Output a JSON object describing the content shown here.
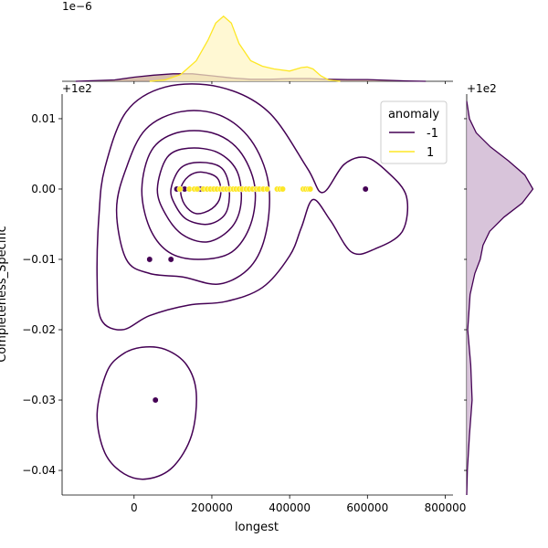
{
  "chart_data": {
    "type": "scatter",
    "title": "",
    "xlabel": "longest",
    "ylabel": "Completeness_Specific",
    "xlim": [
      -185000,
      820000
    ],
    "ylim": [
      -0.0435,
      0.0135
    ],
    "x_ticks": [
      0,
      200000,
      400000,
      600000,
      800000
    ],
    "x_tick_labels": [
      "0",
      "200000",
      "400000",
      "600000",
      "800000"
    ],
    "y_ticks": [
      0.01,
      0.0,
      -0.01,
      -0.02,
      -0.03,
      -0.04
    ],
    "y_tick_labels": [
      "0.01",
      "0.00",
      "−0.01",
      "−0.02",
      "−0.03",
      "−0.04"
    ],
    "y_offset_label": "+1e2",
    "top_marginal_offset_label": "1e−6",
    "right_marginal_offset_label": "+1e2",
    "legend": {
      "title": "anomaly",
      "position": "top-right",
      "entries": [
        {
          "label": "-1",
          "color": "#440154"
        },
        {
          "label": "1",
          "color": "#fde725"
        }
      ]
    },
    "grid": false,
    "series": [
      {
        "name": "-1",
        "color": "#440154",
        "points": [
          [
            40000,
            -0.01
          ],
          [
            55000,
            -0.03
          ],
          [
            95000,
            -0.01
          ],
          [
            110000,
            0.0
          ],
          [
            130000,
            0.0
          ],
          [
            165000,
            0.0
          ],
          [
            172000,
            0.0
          ],
          [
            595000,
            0.0
          ]
        ]
      },
      {
        "name": "1",
        "color": "#fde725",
        "points": [
          [
            118000,
            0.0
          ],
          [
            142000,
            0.0
          ],
          [
            155000,
            0.0
          ],
          [
            162000,
            0.0
          ],
          [
            178000,
            0.0
          ],
          [
            188000,
            0.0
          ],
          [
            196000,
            0.0
          ],
          [
            205000,
            0.0
          ],
          [
            213000,
            0.0
          ],
          [
            222000,
            0.0
          ],
          [
            230000,
            0.0
          ],
          [
            238000,
            0.0
          ],
          [
            246000,
            0.0
          ],
          [
            255000,
            0.0
          ],
          [
            262000,
            0.0
          ],
          [
            270000,
            0.0
          ],
          [
            278000,
            0.0
          ],
          [
            288000,
            0.0
          ],
          [
            296000,
            0.0
          ],
          [
            305000,
            0.0
          ],
          [
            315000,
            0.0
          ],
          [
            322000,
            0.0
          ],
          [
            332000,
            0.0
          ],
          [
            342000,
            0.0
          ],
          [
            368000,
            0.0
          ],
          [
            375000,
            0.0
          ],
          [
            382000,
            0.0
          ],
          [
            435000,
            0.0
          ],
          [
            441000,
            0.0
          ],
          [
            448000,
            0.0
          ],
          [
            453000,
            0.0
          ]
        ]
      }
    ],
    "kde_contours": {
      "series": "-1",
      "color": "#440154",
      "levels": [
        [
          [
            -95000,
            -0.032
          ],
          [
            -70000,
            -0.026
          ],
          [
            -30000,
            -0.0235
          ],
          [
            20000,
            -0.0225
          ],
          [
            80000,
            -0.0228
          ],
          [
            135000,
            -0.025
          ],
          [
            160000,
            -0.029
          ],
          [
            148000,
            -0.035
          ],
          [
            100000,
            -0.0395
          ],
          [
            35000,
            -0.0412
          ],
          [
            -25000,
            -0.0405
          ],
          [
            -75000,
            -0.0375
          ],
          [
            -95000,
            -0.032
          ]
        ],
        [
          [
            -95000,
            -0.0125
          ],
          [
            -90000,
            -0.0035
          ],
          [
            -75000,
            0.003
          ],
          [
            -20000,
            0.011
          ],
          [
            80000,
            0.0145
          ],
          [
            220000,
            0.0145
          ],
          [
            345000,
            0.011
          ],
          [
            445000,
            0.003
          ],
          [
            485000,
            -0.0005
          ],
          [
            540000,
            0.0035
          ],
          [
            595000,
            0.0045
          ],
          [
            650000,
            0.0025
          ],
          [
            700000,
            -0.001
          ],
          [
            690000,
            -0.006
          ],
          [
            620000,
            -0.0085
          ],
          [
            560000,
            -0.009
          ],
          [
            505000,
            -0.0045
          ],
          [
            460000,
            -0.0015
          ],
          [
            430000,
            -0.0055
          ],
          [
            400000,
            -0.0095
          ],
          [
            330000,
            -0.014
          ],
          [
            235000,
            -0.016
          ],
          [
            140000,
            -0.0165
          ],
          [
            40000,
            -0.018
          ],
          [
            -30000,
            -0.02
          ],
          [
            -85000,
            -0.0185
          ],
          [
            -95000,
            -0.0125
          ]
        ],
        [
          [
            -45000,
            -0.003
          ],
          [
            -20000,
            0.003
          ],
          [
            30000,
            0.0085
          ],
          [
            120000,
            0.011
          ],
          [
            220000,
            0.0105
          ],
          [
            300000,
            0.007
          ],
          [
            345000,
            0.001
          ],
          [
            340000,
            -0.006
          ],
          [
            300000,
            -0.011
          ],
          [
            220000,
            -0.0135
          ],
          [
            125000,
            -0.0125
          ],
          [
            40000,
            -0.012
          ],
          [
            -20000,
            -0.01
          ],
          [
            -45000,
            -0.003
          ]
        ],
        [
          [
            20000,
            0.0
          ],
          [
            45000,
            0.0055
          ],
          [
            110000,
            0.008
          ],
          [
            200000,
            0.008
          ],
          [
            270000,
            0.0055
          ],
          [
            310000,
            0.0005
          ],
          [
            300000,
            -0.005
          ],
          [
            250000,
            -0.009
          ],
          [
            165000,
            -0.01
          ],
          [
            90000,
            -0.009
          ],
          [
            40000,
            -0.0055
          ],
          [
            20000,
            0.0
          ]
        ],
        [
          [
            60000,
            0.0
          ],
          [
            85000,
            0.0045
          ],
          [
            140000,
            0.0058
          ],
          [
            215000,
            0.0052
          ],
          [
            265000,
            0.0025
          ],
          [
            275000,
            -0.002
          ],
          [
            250000,
            -0.0055
          ],
          [
            190000,
            -0.0075
          ],
          [
            125000,
            -0.0065
          ],
          [
            80000,
            -0.0035
          ],
          [
            60000,
            0.0
          ]
        ],
        [
          [
            95000,
            0.0
          ],
          [
            120000,
            0.003
          ],
          [
            170000,
            0.0038
          ],
          [
            225000,
            0.003
          ],
          [
            245000,
            0.0
          ],
          [
            235000,
            -0.0035
          ],
          [
            190000,
            -0.005
          ],
          [
            135000,
            -0.0043
          ],
          [
            105000,
            -0.0022
          ],
          [
            95000,
            0.0
          ]
        ],
        [
          [
            120000,
            0.0
          ],
          [
            140000,
            0.0018
          ],
          [
            175000,
            0.0024
          ],
          [
            215000,
            0.0015
          ],
          [
            222000,
            -0.001
          ],
          [
            200000,
            -0.0028
          ],
          [
            160000,
            -0.0035
          ],
          [
            130000,
            -0.0022
          ],
          [
            120000,
            0.0
          ]
        ]
      ]
    },
    "top_marginal": {
      "description": "kde of longest by anomaly",
      "series": [
        {
          "name": "-1",
          "color": "#440154",
          "fill": "#c8a48a",
          "x": [
            -150000,
            -50000,
            0,
            50000,
            100000,
            150000,
            200000,
            250000,
            300000,
            350000,
            400000,
            450000,
            500000,
            550000,
            600000,
            650000,
            700000,
            750000
          ],
          "density": [
            0.0,
            0.02,
            0.06,
            0.09,
            0.11,
            0.11,
            0.08,
            0.05,
            0.03,
            0.03,
            0.04,
            0.04,
            0.03,
            0.025,
            0.025,
            0.015,
            0.005,
            0.0
          ]
        },
        {
          "name": "1",
          "color": "#fde725",
          "fill": "#fff5c0",
          "x": [
            40000,
            80000,
            120000,
            160000,
            190000,
            210000,
            230000,
            250000,
            270000,
            300000,
            330000,
            360000,
            400000,
            430000,
            445000,
            460000,
            480000,
            500000,
            530000
          ],
          "density": [
            0.0,
            0.02,
            0.1,
            0.3,
            0.6,
            0.85,
            0.95,
            0.85,
            0.55,
            0.3,
            0.22,
            0.18,
            0.15,
            0.2,
            0.21,
            0.18,
            0.08,
            0.02,
            0.0
          ]
        }
      ]
    },
    "right_marginal": {
      "description": "kde of Completeness_Specific for anomaly -1",
      "series": [
        {
          "name": "-1",
          "color": "#440154",
          "fill": "#d1bad3",
          "y": [
            0.0125,
            0.01,
            0.008,
            0.006,
            0.004,
            0.002,
            0.0,
            -0.002,
            -0.004,
            -0.006,
            -0.008,
            -0.01,
            -0.012,
            -0.015,
            -0.02,
            -0.025,
            -0.03,
            -0.035,
            -0.04,
            -0.0435
          ],
          "density": [
            0.0,
            0.04,
            0.14,
            0.35,
            0.62,
            0.86,
            0.98,
            0.82,
            0.55,
            0.34,
            0.24,
            0.2,
            0.12,
            0.05,
            0.015,
            0.06,
            0.08,
            0.04,
            0.01,
            0.0
          ]
        }
      ]
    }
  }
}
